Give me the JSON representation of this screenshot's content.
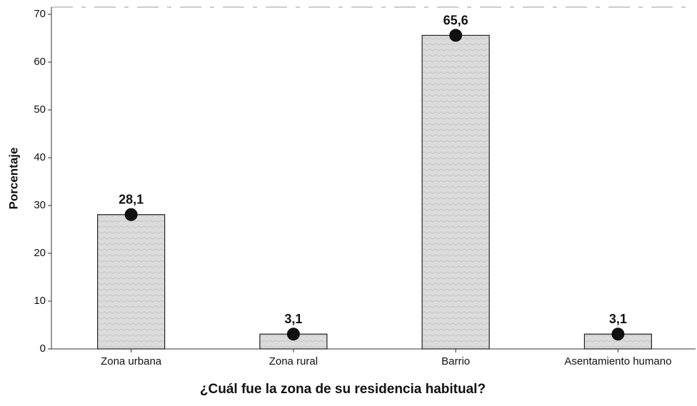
{
  "chart_data": {
    "type": "bar",
    "categories": [
      "Zona urbana",
      "Zona rural",
      "Barrio",
      "Asentamiento humano"
    ],
    "values": [
      28.1,
      3.1,
      65.6,
      3.1
    ],
    "value_labels": [
      "28,1",
      "3,1",
      "65,6",
      "3,1"
    ],
    "color": "#d9d9d9",
    "xlabel": "¿Cuál fue la zona de su residencia habitual?",
    "ylabel": "Porcentaje",
    "ylim": [
      0,
      71.5
    ],
    "yticks": [
      0,
      10,
      20,
      30,
      40,
      50,
      60,
      70
    ]
  }
}
